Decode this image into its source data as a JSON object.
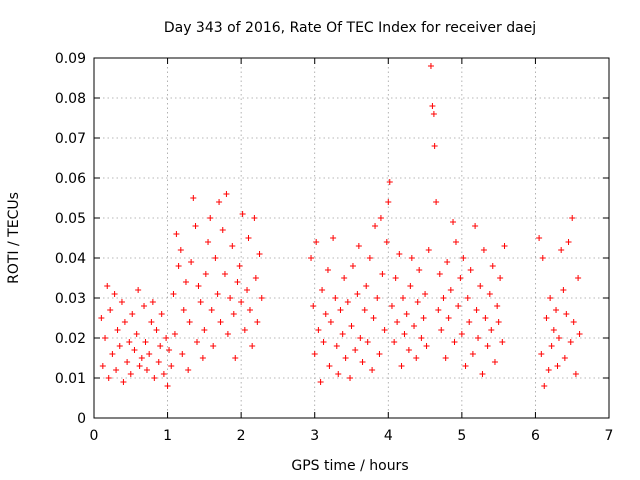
{
  "chart_data": {
    "type": "scatter",
    "title": "Day 343 of 2016, Rate Of TEC Index for receiver daej",
    "xlabel": "GPS time / hours",
    "ylabel": "ROTI / TECUs",
    "xlim": [
      0,
      7
    ],
    "ylim": [
      0,
      0.09
    ],
    "x_ticks": [
      "0",
      "1",
      "2",
      "3",
      "4",
      "5",
      "6",
      "7"
    ],
    "y_ticks": [
      "0",
      "0.01",
      "0.02",
      "0.03",
      "0.04",
      "0.05",
      "0.06",
      "0.07",
      "0.08",
      "0.09"
    ],
    "grid": true,
    "marker": "+",
    "marker_color": "#ff0000",
    "series": [
      {
        "name": "ROTI",
        "points": [
          [
            0.1,
            0.025
          ],
          [
            0.12,
            0.013
          ],
          [
            0.15,
            0.02
          ],
          [
            0.18,
            0.033
          ],
          [
            0.2,
            0.01
          ],
          [
            0.22,
            0.027
          ],
          [
            0.25,
            0.016
          ],
          [
            0.28,
            0.031
          ],
          [
            0.3,
            0.012
          ],
          [
            0.32,
            0.022
          ],
          [
            0.35,
            0.018
          ],
          [
            0.38,
            0.029
          ],
          [
            0.4,
            0.009
          ],
          [
            0.42,
            0.024
          ],
          [
            0.45,
            0.014
          ],
          [
            0.48,
            0.019
          ],
          [
            0.5,
            0.011
          ],
          [
            0.52,
            0.026
          ],
          [
            0.55,
            0.017
          ],
          [
            0.58,
            0.021
          ],
          [
            0.6,
            0.032
          ],
          [
            0.62,
            0.013
          ],
          [
            0.65,
            0.015
          ],
          [
            0.68,
            0.028
          ],
          [
            0.7,
            0.019
          ],
          [
            0.72,
            0.012
          ],
          [
            0.75,
            0.016
          ],
          [
            0.78,
            0.024
          ],
          [
            0.8,
            0.029
          ],
          [
            0.82,
            0.01
          ],
          [
            0.85,
            0.022
          ],
          [
            0.88,
            0.014
          ],
          [
            0.9,
            0.018
          ],
          [
            0.92,
            0.026
          ],
          [
            0.95,
            0.011
          ],
          [
            0.98,
            0.02
          ],
          [
            1.0,
            0.008
          ],
          [
            1.02,
            0.017
          ],
          [
            1.05,
            0.013
          ],
          [
            1.08,
            0.031
          ],
          [
            1.1,
            0.021
          ],
          [
            1.12,
            0.046
          ],
          [
            1.15,
            0.038
          ],
          [
            1.18,
            0.042
          ],
          [
            1.2,
            0.016
          ],
          [
            1.22,
            0.027
          ],
          [
            1.25,
            0.034
          ],
          [
            1.28,
            0.012
          ],
          [
            1.3,
            0.024
          ],
          [
            1.32,
            0.039
          ],
          [
            1.35,
            0.055
          ],
          [
            1.38,
            0.048
          ],
          [
            1.4,
            0.019
          ],
          [
            1.42,
            0.033
          ],
          [
            1.45,
            0.029
          ],
          [
            1.48,
            0.015
          ],
          [
            1.5,
            0.022
          ],
          [
            1.52,
            0.036
          ],
          [
            1.55,
            0.044
          ],
          [
            1.58,
            0.05
          ],
          [
            1.6,
            0.027
          ],
          [
            1.62,
            0.018
          ],
          [
            1.65,
            0.04
          ],
          [
            1.68,
            0.031
          ],
          [
            1.7,
            0.054
          ],
          [
            1.72,
            0.024
          ],
          [
            1.75,
            0.047
          ],
          [
            1.78,
            0.036
          ],
          [
            1.8,
            0.056
          ],
          [
            1.82,
            0.021
          ],
          [
            1.85,
            0.03
          ],
          [
            1.88,
            0.043
          ],
          [
            1.9,
            0.026
          ],
          [
            1.92,
            0.015
          ],
          [
            1.95,
            0.034
          ],
          [
            1.98,
            0.038
          ],
          [
            2.0,
            0.029
          ],
          [
            2.02,
            0.051
          ],
          [
            2.05,
            0.022
          ],
          [
            2.08,
            0.032
          ],
          [
            2.1,
            0.045
          ],
          [
            2.12,
            0.027
          ],
          [
            2.15,
            0.018
          ],
          [
            2.18,
            0.05
          ],
          [
            2.2,
            0.035
          ],
          [
            2.22,
            0.024
          ],
          [
            2.25,
            0.041
          ],
          [
            2.28,
            0.03
          ],
          [
            2.95,
            0.04
          ],
          [
            2.98,
            0.028
          ],
          [
            3.0,
            0.016
          ],
          [
            3.02,
            0.044
          ],
          [
            3.05,
            0.022
          ],
          [
            3.08,
            0.009
          ],
          [
            3.1,
            0.032
          ],
          [
            3.12,
            0.019
          ],
          [
            3.15,
            0.026
          ],
          [
            3.18,
            0.037
          ],
          [
            3.2,
            0.013
          ],
          [
            3.22,
            0.024
          ],
          [
            3.25,
            0.045
          ],
          [
            3.28,
            0.03
          ],
          [
            3.3,
            0.018
          ],
          [
            3.32,
            0.011
          ],
          [
            3.35,
            0.027
          ],
          [
            3.38,
            0.021
          ],
          [
            3.4,
            0.035
          ],
          [
            3.42,
            0.015
          ],
          [
            3.45,
            0.029
          ],
          [
            3.48,
            0.01
          ],
          [
            3.5,
            0.023
          ],
          [
            3.52,
            0.038
          ],
          [
            3.55,
            0.017
          ],
          [
            3.58,
            0.031
          ],
          [
            3.6,
            0.043
          ],
          [
            3.62,
            0.02
          ],
          [
            3.65,
            0.014
          ],
          [
            3.68,
            0.027
          ],
          [
            3.7,
            0.033
          ],
          [
            3.72,
            0.019
          ],
          [
            3.75,
            0.04
          ],
          [
            3.78,
            0.012
          ],
          [
            3.8,
            0.025
          ],
          [
            3.82,
            0.048
          ],
          [
            3.85,
            0.03
          ],
          [
            3.88,
            0.016
          ],
          [
            3.9,
            0.05
          ],
          [
            3.92,
            0.036
          ],
          [
            3.95,
            0.022
          ],
          [
            3.98,
            0.044
          ],
          [
            4.0,
            0.054
          ],
          [
            4.02,
            0.059
          ],
          [
            4.05,
            0.028
          ],
          [
            4.08,
            0.019
          ],
          [
            4.1,
            0.035
          ],
          [
            4.12,
            0.024
          ],
          [
            4.15,
            0.041
          ],
          [
            4.18,
            0.013
          ],
          [
            4.2,
            0.03
          ],
          [
            4.22,
            0.021
          ],
          [
            4.25,
            0.026
          ],
          [
            4.28,
            0.017
          ],
          [
            4.3,
            0.033
          ],
          [
            4.32,
            0.04
          ],
          [
            4.35,
            0.023
          ],
          [
            4.38,
            0.015
          ],
          [
            4.4,
            0.029
          ],
          [
            4.42,
            0.037
          ],
          [
            4.45,
            0.02
          ],
          [
            4.48,
            0.025
          ],
          [
            4.5,
            0.031
          ],
          [
            4.52,
            0.018
          ],
          [
            4.55,
            0.042
          ],
          [
            4.58,
            0.088
          ],
          [
            4.6,
            0.078
          ],
          [
            4.62,
            0.076
          ],
          [
            4.63,
            0.068
          ],
          [
            4.65,
            0.054
          ],
          [
            4.68,
            0.027
          ],
          [
            4.7,
            0.036
          ],
          [
            4.72,
            0.022
          ],
          [
            4.75,
            0.03
          ],
          [
            4.78,
            0.015
          ],
          [
            4.8,
            0.039
          ],
          [
            4.82,
            0.025
          ],
          [
            4.85,
            0.032
          ],
          [
            4.88,
            0.049
          ],
          [
            4.9,
            0.019
          ],
          [
            4.92,
            0.044
          ],
          [
            4.95,
            0.028
          ],
          [
            4.98,
            0.035
          ],
          [
            5.0,
            0.021
          ],
          [
            5.02,
            0.04
          ],
          [
            5.05,
            0.013
          ],
          [
            5.08,
            0.03
          ],
          [
            5.1,
            0.024
          ],
          [
            5.12,
            0.037
          ],
          [
            5.15,
            0.016
          ],
          [
            5.18,
            0.048
          ],
          [
            5.2,
            0.027
          ],
          [
            5.22,
            0.02
          ],
          [
            5.25,
            0.033
          ],
          [
            5.28,
            0.011
          ],
          [
            5.3,
            0.042
          ],
          [
            5.32,
            0.025
          ],
          [
            5.35,
            0.018
          ],
          [
            5.38,
            0.031
          ],
          [
            5.4,
            0.022
          ],
          [
            5.42,
            0.038
          ],
          [
            5.45,
            0.014
          ],
          [
            5.48,
            0.028
          ],
          [
            5.5,
            0.024
          ],
          [
            5.52,
            0.035
          ],
          [
            5.55,
            0.019
          ],
          [
            5.58,
            0.043
          ],
          [
            6.05,
            0.045
          ],
          [
            6.08,
            0.016
          ],
          [
            6.1,
            0.04
          ],
          [
            6.12,
            0.008
          ],
          [
            6.15,
            0.025
          ],
          [
            6.18,
            0.012
          ],
          [
            6.2,
            0.03
          ],
          [
            6.22,
            0.018
          ],
          [
            6.25,
            0.022
          ],
          [
            6.28,
            0.027
          ],
          [
            6.3,
            0.013
          ],
          [
            6.32,
            0.02
          ],
          [
            6.35,
            0.042
          ],
          [
            6.38,
            0.032
          ],
          [
            6.4,
            0.015
          ],
          [
            6.42,
            0.026
          ],
          [
            6.45,
            0.044
          ],
          [
            6.48,
            0.019
          ],
          [
            6.5,
            0.05
          ],
          [
            6.52,
            0.024
          ],
          [
            6.55,
            0.011
          ],
          [
            6.58,
            0.035
          ],
          [
            6.6,
            0.021
          ]
        ]
      }
    ]
  }
}
